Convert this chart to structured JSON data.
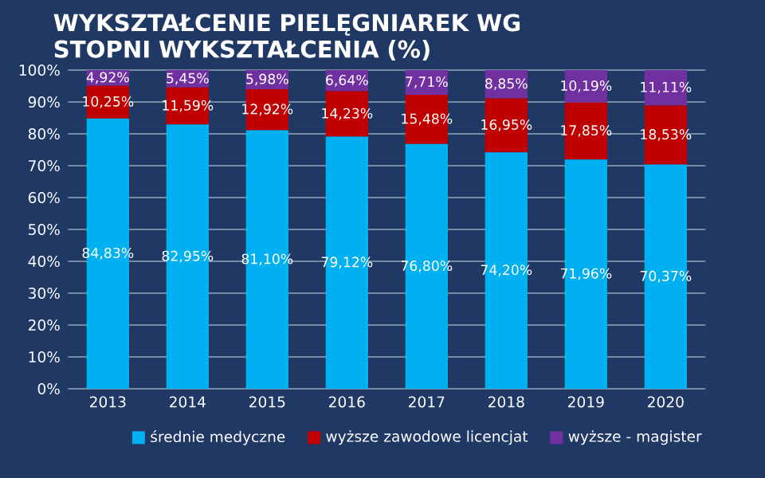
{
  "chart_data": {
    "type": "bar",
    "stacked": true,
    "title": "WYKSZTAŁCENIE PIELĘGNIAREK WG STOPNI WYKSZTAŁCENIA (%)",
    "categories": [
      "2013",
      "2014",
      "2015",
      "2016",
      "2017",
      "2018",
      "2019",
      "2020"
    ],
    "series": [
      {
        "name": "średnie medyczne",
        "color": "#00b0f0",
        "values": [
          84.83,
          82.95,
          81.1,
          79.12,
          76.8,
          74.2,
          71.96,
          70.37
        ],
        "value_labels": [
          "84,83%",
          "82,95%",
          "81,10%",
          "79,12%",
          "76,80%",
          "74,20%",
          "71,96%",
          "70,37%"
        ]
      },
      {
        "name": "wyższe zawodowe licencjat",
        "color": "#c00000",
        "values": [
          10.25,
          11.59,
          12.92,
          14.23,
          15.48,
          16.95,
          17.85,
          18.53
        ],
        "value_labels": [
          "10,25%",
          "11,59%",
          "12,92%",
          "14,23%",
          "15,48%",
          "16,95%",
          "17,85%",
          "18,53%"
        ]
      },
      {
        "name": "wyższe - magister",
        "color": "#7030a0",
        "values": [
          4.92,
          5.45,
          5.98,
          6.64,
          7.71,
          8.85,
          10.19,
          11.11
        ],
        "value_labels": [
          "4,92%",
          "5,45%",
          "5,98%",
          "6,64%",
          "7,71%",
          "8,85%",
          "10,19%",
          "11,11%"
        ]
      }
    ],
    "ylim": [
      0,
      100
    ],
    "yticks": [
      {
        "value": 0,
        "label": "0%"
      },
      {
        "value": 10,
        "label": "10%"
      },
      {
        "value": 20,
        "label": "20%"
      },
      {
        "value": 30,
        "label": "30%"
      },
      {
        "value": 40,
        "label": "40%"
      },
      {
        "value": 50,
        "label": "50%"
      },
      {
        "value": 60,
        "label": "60%"
      },
      {
        "value": 70,
        "label": "70%"
      },
      {
        "value": 80,
        "label": "80%"
      },
      {
        "value": 90,
        "label": "90%"
      },
      {
        "value": 100,
        "label": "100%"
      }
    ],
    "grid": "y",
    "legend": "bottom"
  }
}
